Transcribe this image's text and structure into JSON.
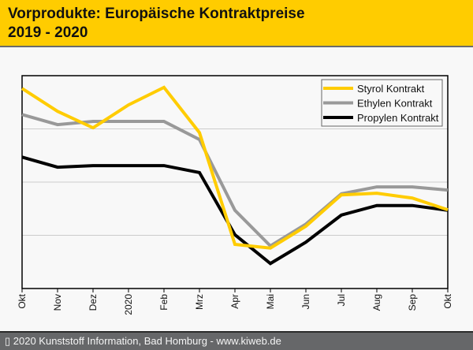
{
  "header": {
    "title_line1": "Vorprodukte: Europäische Kontraktpreise",
    "title_line2": "2019 - 2020"
  },
  "footer": {
    "copyright_icon": "copyright-icon",
    "text": "▯ 2020 Kunststoff Information, Bad Homburg - www.kiweb.de"
  },
  "chart_data": {
    "type": "line",
    "title": "Vorprodukte: Europäische Kontraktpreise 2019 - 2020",
    "xlabel": "",
    "ylabel": "",
    "y_units": "relative (gridline units, no y tick labels shown)",
    "ylim": [
      0,
      4
    ],
    "grid": true,
    "legend_position": "top-right",
    "categories": [
      "Okt",
      "Nov",
      "Dez",
      "2020",
      "Feb",
      "Mrz",
      "Apr",
      "Mai",
      "Jun",
      "Jul",
      "Aug",
      "Sep",
      "Okt"
    ],
    "series": [
      {
        "name": "Styrol Kontrakt",
        "color": "#ffcc00",
        "values": [
          3.76,
          3.33,
          3.02,
          3.45,
          3.78,
          2.93,
          0.83,
          0.76,
          1.17,
          1.76,
          1.79,
          1.7,
          1.48
        ]
      },
      {
        "name": "Ethylen Kontrakt",
        "color": "#999999",
        "values": [
          3.27,
          3.08,
          3.14,
          3.14,
          3.14,
          2.8,
          1.47,
          0.8,
          1.21,
          1.78,
          1.91,
          1.91,
          1.85
        ]
      },
      {
        "name": "Propylen Kontrakt",
        "color": "#000000",
        "values": [
          2.47,
          2.28,
          2.31,
          2.31,
          2.31,
          2.18,
          1.01,
          0.47,
          0.87,
          1.38,
          1.56,
          1.56,
          1.47
        ]
      }
    ]
  }
}
